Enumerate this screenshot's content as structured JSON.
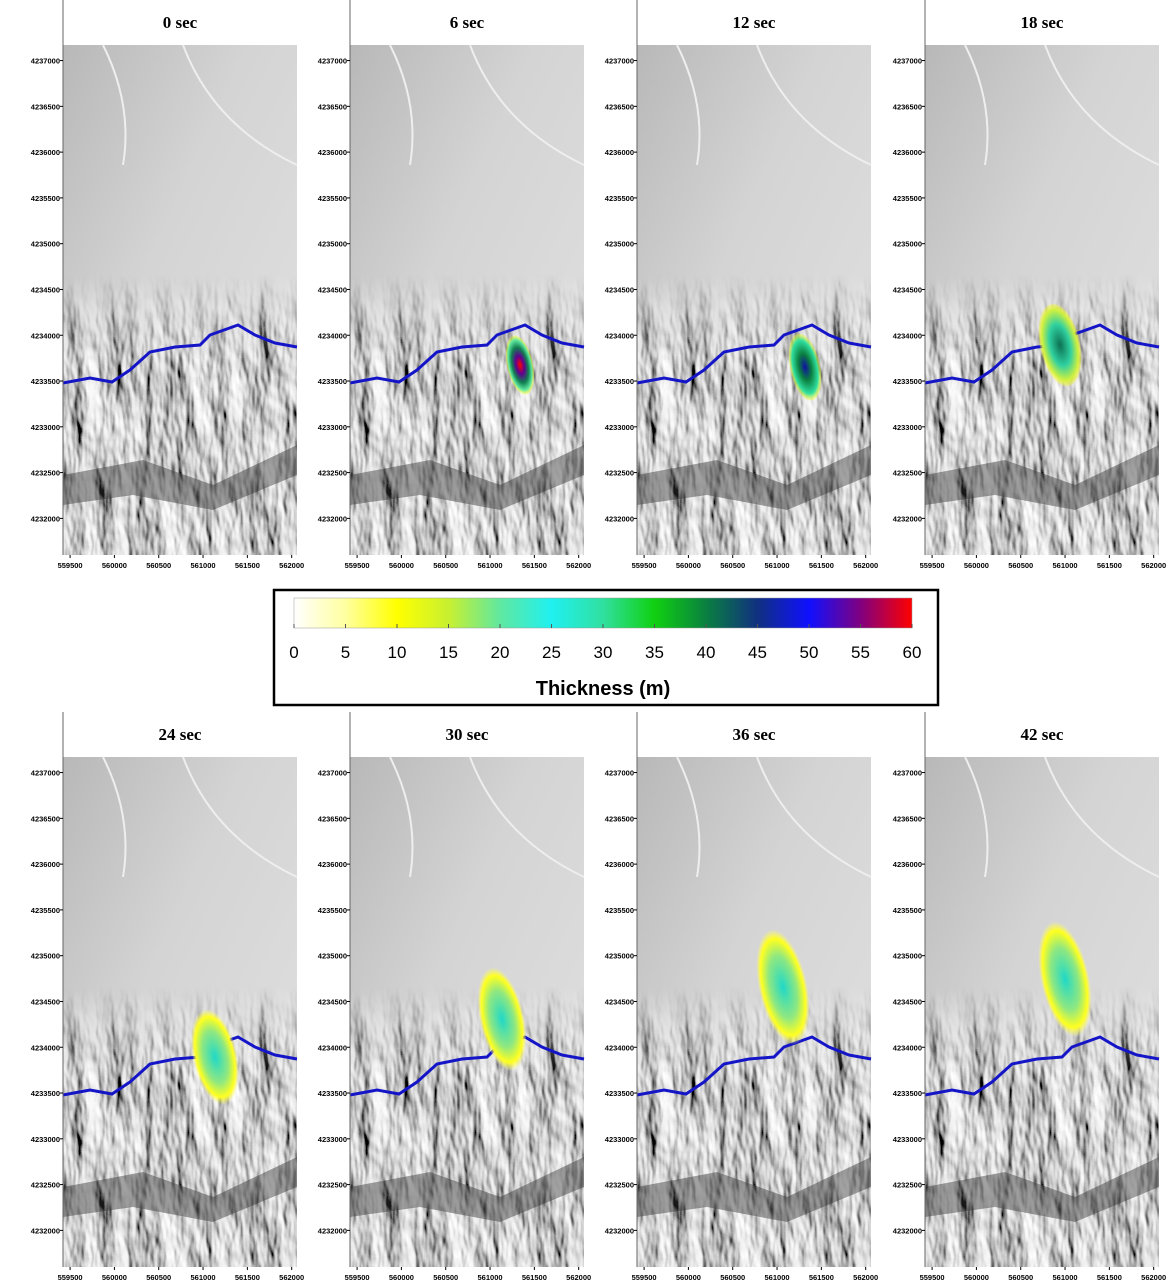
{
  "panels": [
    {
      "title": "0 sec"
    },
    {
      "title": "6 sec"
    },
    {
      "title": "12 sec"
    },
    {
      "title": "18 sec"
    },
    {
      "title": "24 sec"
    },
    {
      "title": "30 sec"
    },
    {
      "title": "36 sec"
    },
    {
      "title": "42 sec"
    }
  ],
  "axes": {
    "xlim": [
      559420,
      562060
    ],
    "ylim": [
      4231600,
      4237170
    ],
    "xticks": [
      559500,
      560000,
      560500,
      561000,
      561500,
      562000
    ],
    "yticks": [
      4232000,
      4232500,
      4233000,
      4233500,
      4234000,
      4234500,
      4235000,
      4235500,
      4236000,
      4236500,
      4237000
    ]
  },
  "colorbar": {
    "label": "Thickness (m)",
    "lim": [
      0,
      60
    ],
    "ticks": [
      0,
      5,
      10,
      15,
      20,
      25,
      30,
      35,
      40,
      45,
      50,
      55,
      60
    ],
    "colors": [
      "#ffffff",
      "#ffffa0",
      "#ffff00",
      "#c8f030",
      "#60e8a0",
      "#20f0f0",
      "#30e0a0",
      "#10d010",
      "#0a8040",
      "#103080",
      "#1010ff",
      "#800080",
      "#ff0000"
    ]
  }
}
